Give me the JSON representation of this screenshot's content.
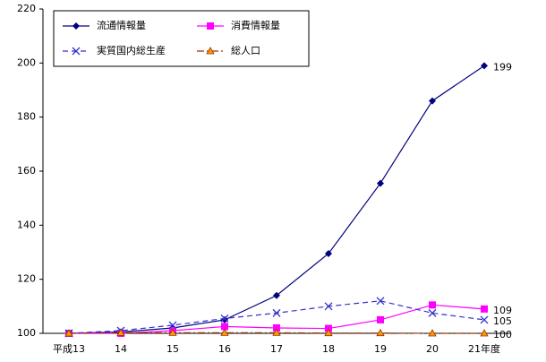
{
  "chart_data": {
    "type": "line",
    "categories": [
      "平成13",
      "14",
      "15",
      "16",
      "17",
      "18",
      "19",
      "20",
      "21年度"
    ],
    "series": [
      {
        "name": "流通情報量",
        "color": "#000080",
        "marker": "diamond",
        "dash": "solid",
        "values": [
          100,
          100.5,
          102,
          105,
          114,
          129.5,
          155.5,
          186,
          199
        ]
      },
      {
        "name": "消費情報量",
        "color": "#ff00ff",
        "marker": "square",
        "dash": "solid",
        "values": [
          100,
          100,
          101,
          102.5,
          102,
          101.8,
          105,
          110.5,
          109
        ]
      },
      {
        "name": "実質国内総生産",
        "color": "#3333cc",
        "marker": "x",
        "dash": "dashed",
        "values": [
          100,
          101,
          103,
          105.5,
          107.5,
          110,
          112,
          107.5,
          105
        ]
      },
      {
        "name": "総人口",
        "color": "#993300",
        "marker": "triangle",
        "dash": "dashdot",
        "values": [
          100,
          100.2,
          100.2,
          100.2,
          100.2,
          100.1,
          100.1,
          100,
          100
        ]
      }
    ],
    "ylim": [
      100,
      220
    ],
    "yticks": [
      100,
      120,
      140,
      160,
      180,
      200,
      220
    ],
    "legend": "upper left"
  }
}
